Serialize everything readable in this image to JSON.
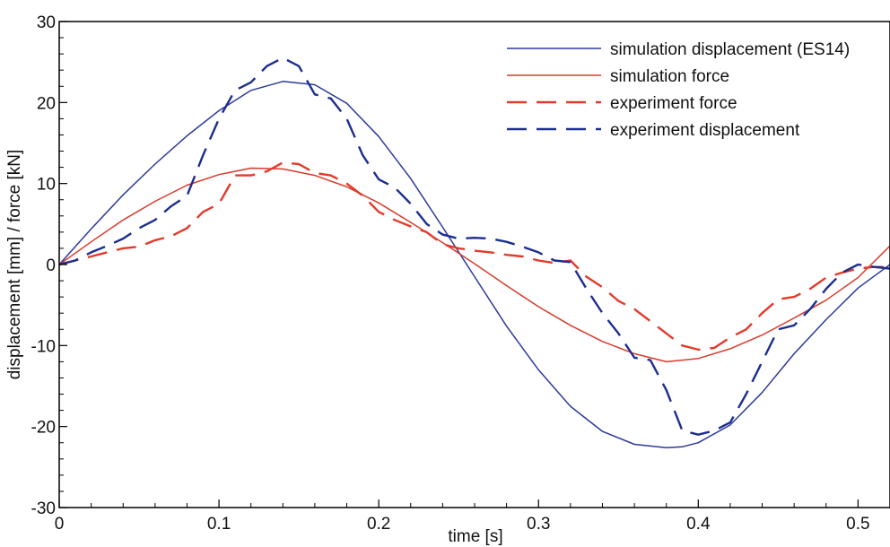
{
  "chart_data": {
    "type": "line",
    "xlabel": "time [s]",
    "ylabel": "displacement [mm] / force [kN]",
    "xlim": [
      0,
      0.52
    ],
    "ylim": [
      -30,
      30
    ],
    "x_ticks": [
      0,
      0.1,
      0.2,
      0.3,
      0.4,
      0.5
    ],
    "x_tick_labels": [
      "0",
      "0.1",
      "0.2",
      "0.3",
      "0.4",
      "0.5"
    ],
    "y_ticks": [
      -30,
      -20,
      -10,
      0,
      10,
      20,
      30
    ],
    "y_tick_labels": [
      "-30",
      "-20",
      "-10",
      "0",
      "10",
      "20",
      "30"
    ],
    "grid": false,
    "legend_position": "top-right",
    "series": [
      {
        "name": "simulation displacement (ES14)",
        "color": "#2b3a9a",
        "style": "solid",
        "x": [
          0,
          0.02,
          0.04,
          0.06,
          0.08,
          0.1,
          0.12,
          0.14,
          0.16,
          0.18,
          0.2,
          0.22,
          0.24,
          0.26,
          0.28,
          0.3,
          0.32,
          0.34,
          0.36,
          0.38,
          0.39,
          0.4,
          0.42,
          0.44,
          0.46,
          0.48,
          0.5,
          0.52
        ],
        "y": [
          0,
          4.4,
          8.6,
          12.4,
          15.9,
          19.0,
          21.5,
          22.6,
          22.2,
          19.9,
          15.8,
          10.6,
          4.6,
          -1.5,
          -7.6,
          -13.0,
          -17.5,
          -20.6,
          -22.2,
          -22.6,
          -22.5,
          -22.0,
          -19.8,
          -15.8,
          -11.0,
          -6.8,
          -2.9,
          0
        ]
      },
      {
        "name": "simulation force",
        "color": "#d93a2b",
        "style": "solid",
        "x": [
          0,
          0.02,
          0.04,
          0.06,
          0.08,
          0.1,
          0.12,
          0.14,
          0.16,
          0.18,
          0.2,
          0.22,
          0.24,
          0.26,
          0.28,
          0.3,
          0.32,
          0.34,
          0.36,
          0.38,
          0.4,
          0.42,
          0.44,
          0.46,
          0.48,
          0.5,
          0.52
        ],
        "y": [
          0,
          2.8,
          5.5,
          7.8,
          9.8,
          11.1,
          11.9,
          11.8,
          11.0,
          9.6,
          7.6,
          5.2,
          2.7,
          0.1,
          -2.6,
          -5.2,
          -7.5,
          -9.5,
          -11.0,
          -12.0,
          -11.6,
          -10.4,
          -8.7,
          -6.6,
          -4.4,
          -1.6,
          2.3
        ]
      },
      {
        "name": "experiment force",
        "color": "#e23a2a",
        "style": "dashed",
        "x": [
          0,
          0.01,
          0.02,
          0.03,
          0.04,
          0.05,
          0.06,
          0.07,
          0.08,
          0.09,
          0.1,
          0.11,
          0.12,
          0.13,
          0.14,
          0.15,
          0.16,
          0.17,
          0.18,
          0.19,
          0.2,
          0.21,
          0.22,
          0.23,
          0.24,
          0.25,
          0.26,
          0.27,
          0.28,
          0.29,
          0.3,
          0.31,
          0.32,
          0.33,
          0.34,
          0.35,
          0.36,
          0.37,
          0.38,
          0.39,
          0.4,
          0.41,
          0.42,
          0.43,
          0.44,
          0.45,
          0.46,
          0.47,
          0.48,
          0.49,
          0.5,
          0.51,
          0.52
        ],
        "y": [
          0,
          0.5,
          1.0,
          1.5,
          2.0,
          2.2,
          3.0,
          3.5,
          4.5,
          6.5,
          7.5,
          11.0,
          11.0,
          11.5,
          12.6,
          12.4,
          11.3,
          11.0,
          10.0,
          8.5,
          6.5,
          5.5,
          4.7,
          4.0,
          2.5,
          2.0,
          1.7,
          1.5,
          1.2,
          1.0,
          0.5,
          0.2,
          0.5,
          -1.5,
          -2.8,
          -4.5,
          -5.5,
          -7.0,
          -8.5,
          -10.0,
          -10.5,
          -10.3,
          -9.0,
          -8.0,
          -6.0,
          -4.3,
          -4.0,
          -3.0,
          -1.6,
          -1.0,
          -0.5,
          -0.3,
          -0.3
        ]
      },
      {
        "name": "experiment displacement",
        "color": "#1c2e8f",
        "style": "dashed",
        "x": [
          0,
          0.01,
          0.02,
          0.03,
          0.04,
          0.05,
          0.06,
          0.07,
          0.08,
          0.09,
          0.1,
          0.11,
          0.12,
          0.13,
          0.14,
          0.15,
          0.16,
          0.17,
          0.18,
          0.19,
          0.2,
          0.21,
          0.22,
          0.23,
          0.24,
          0.25,
          0.26,
          0.27,
          0.28,
          0.29,
          0.3,
          0.31,
          0.32,
          0.33,
          0.34,
          0.35,
          0.36,
          0.37,
          0.38,
          0.39,
          0.4,
          0.41,
          0.42,
          0.43,
          0.44,
          0.45,
          0.46,
          0.47,
          0.48,
          0.49,
          0.5,
          0.51,
          0.52
        ],
        "y": [
          0,
          0.5,
          1.5,
          2.3,
          3.2,
          4.5,
          5.5,
          7.2,
          8.5,
          13.5,
          18.0,
          21.5,
          22.5,
          24.5,
          25.5,
          24.5,
          21.0,
          20.5,
          18.0,
          13.5,
          10.5,
          9.5,
          7.5,
          5.0,
          3.7,
          3.2,
          3.3,
          3.2,
          2.8,
          2.2,
          1.5,
          0.5,
          0.3,
          -3.0,
          -6.0,
          -8.5,
          -11.5,
          -11.8,
          -15.5,
          -20.5,
          -21.0,
          -20.5,
          -19.5,
          -16.0,
          -12.0,
          -8.0,
          -7.5,
          -5.5,
          -3.0,
          -1.0,
          0.0,
          -0.3,
          -0.5
        ]
      }
    ]
  }
}
